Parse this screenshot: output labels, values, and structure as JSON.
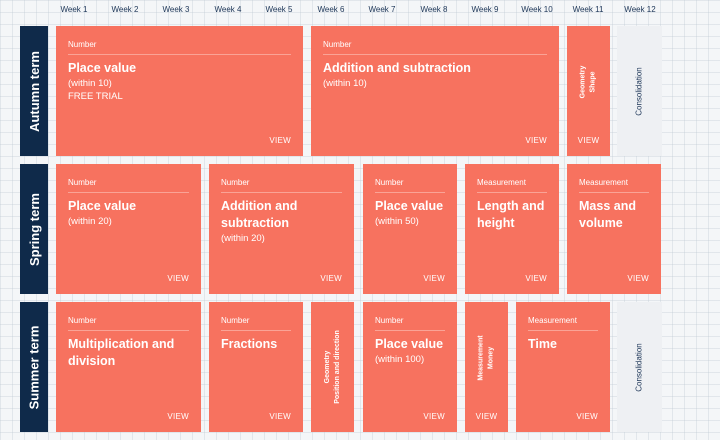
{
  "weeks": [
    "Week 1",
    "Week 2",
    "Week 3",
    "Week 4",
    "Week 5",
    "Week 6",
    "Week 7",
    "Week 8",
    "Week 9",
    "Week 10",
    "Week 11",
    "Week 12"
  ],
  "terms": {
    "autumn": "Autumn term",
    "spring": "Spring term",
    "summer": "Summer term"
  },
  "view_label": "VIEW",
  "consolidation_label": "Consolidation",
  "autumn": {
    "place_value": {
      "category": "Number",
      "title": "Place value",
      "sub": "(within 10)",
      "trial": "FREE TRIAL"
    },
    "addition": {
      "category": "Number",
      "title": "Addition and subtraction",
      "sub": "(within 10)"
    },
    "geometry": {
      "line1": "Geometry",
      "line2": "Shape"
    }
  },
  "spring": {
    "place_value": {
      "category": "Number",
      "title": "Place value",
      "sub": "(within 20)"
    },
    "addition": {
      "category": "Number",
      "title": "Addition and subtraction",
      "sub": "(within 20)"
    },
    "place_value_50": {
      "category": "Number",
      "title": "Place value",
      "sub": "(within 50)"
    },
    "length": {
      "category": "Measurement",
      "title": "Length and height"
    },
    "mass": {
      "category": "Measurement",
      "title": "Mass and volume"
    }
  },
  "summer": {
    "multiplication": {
      "category": "Number",
      "title": "Multiplication and division"
    },
    "fractions": {
      "category": "Number",
      "title": "Fractions"
    },
    "geometry": {
      "line1": "Geometry",
      "line2": "Position and direction"
    },
    "place_value_100": {
      "category": "Number",
      "title": "Place value",
      "sub": "(within 100)"
    },
    "money": {
      "line1": "Measurement",
      "line2": "Money"
    },
    "time": {
      "category": "Measurement",
      "title": "Time"
    }
  }
}
